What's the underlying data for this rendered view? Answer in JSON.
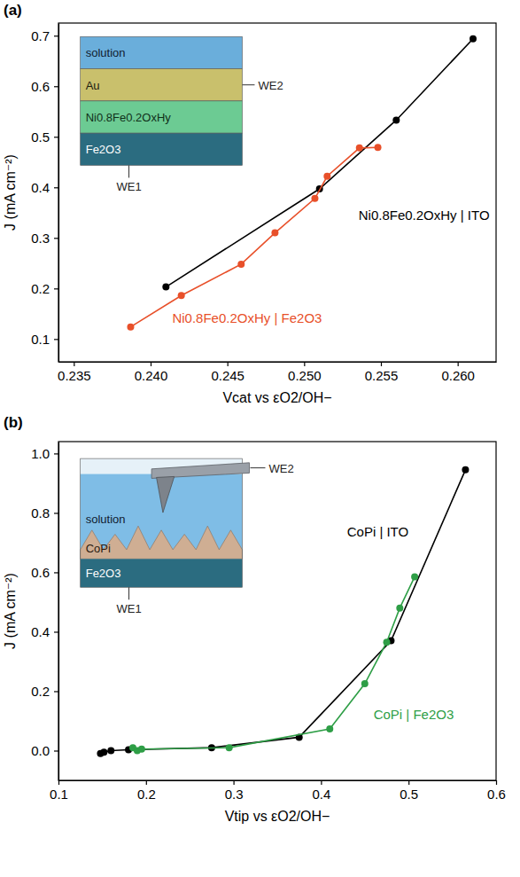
{
  "chart_data": [
    {
      "type": "line",
      "panel": "(a)",
      "xlabel": "Vcat vs εO2/OH−",
      "ylabel": "J (mA cm⁻²)",
      "xlim": [
        0.234,
        0.2625
      ],
      "ylim": [
        0.055,
        0.725
      ],
      "xticks": [
        0.235,
        {
          "value": 0.24,
          "label": "0.240"
        },
        0.245,
        {
          "value": 0.25,
          "label": "0.250"
        },
        0.255,
        {
          "value": 0.26,
          "label": "0.260"
        }
      ],
      "yticks": [
        0.1,
        0.2,
        0.3,
        0.4,
        0.5,
        0.6,
        0.7
      ],
      "marker": "circle",
      "series": [
        {
          "name": "Ni0.8Fe0.2OxHy | ITO",
          "color": "#000000",
          "x": [
            0.241,
            0.251,
            0.256,
            0.261
          ],
          "values": [
            0.203,
            0.397,
            0.533,
            0.694
          ]
        },
        {
          "name": "Ni0.8Fe0.2OxHy | Fe2O3",
          "color": "#e8502a",
          "x": [
            0.2387,
            0.242,
            0.2459,
            0.2481,
            0.2507,
            0.2515,
            0.2536,
            0.2548
          ],
          "values": [
            0.124,
            0.186,
            0.248,
            0.31,
            0.378,
            0.422,
            0.478,
            0.479
          ]
        }
      ],
      "inset": {
        "layers": [
          "solution",
          "Au",
          "Ni0.8Fe0.2OxHy",
          "Fe2O3"
        ],
        "electrodes": [
          "WE2",
          "WE1"
        ]
      }
    },
    {
      "type": "line",
      "panel": "(b)",
      "xlabel": "Vtip vs εO2/OH−",
      "ylabel": "J (mA cm⁻²)",
      "xlim": [
        0.1,
        0.6
      ],
      "ylim": [
        -0.1,
        1.04
      ],
      "xticks": [
        0.1,
        0.2,
        0.3,
        0.4,
        0.5,
        0.6
      ],
      "yticks": [
        {
          "value": 0,
          "label": "0.0"
        },
        0.2,
        0.4,
        0.6,
        0.8,
        {
          "value": 1,
          "label": "1.0"
        }
      ],
      "marker": "circle",
      "series": [
        {
          "name": "CoPi | ITO",
          "color": "#000000",
          "x": [
            0.148,
            0.152,
            0.16,
            0.18,
            0.275,
            0.375,
            0.48,
            0.565
          ],
          "values": [
            -0.01,
            -0.005,
            0.0,
            0.003,
            0.01,
            0.045,
            0.37,
            0.945
          ]
        },
        {
          "name": "CoPi | Fe2O3",
          "color": "#2e9e46",
          "x": [
            0.185,
            0.19,
            0.195,
            0.295,
            0.41,
            0.45,
            0.475,
            0.49,
            0.507
          ],
          "values": [
            0.01,
            0.0,
            0.005,
            0.01,
            0.073,
            0.225,
            0.365,
            0.48,
            0.585
          ]
        }
      ],
      "inset": {
        "layers": [
          "solution",
          "CoPi",
          "Fe2O3"
        ],
        "electrodes": [
          "WE2",
          "WE1"
        ]
      }
    }
  ]
}
